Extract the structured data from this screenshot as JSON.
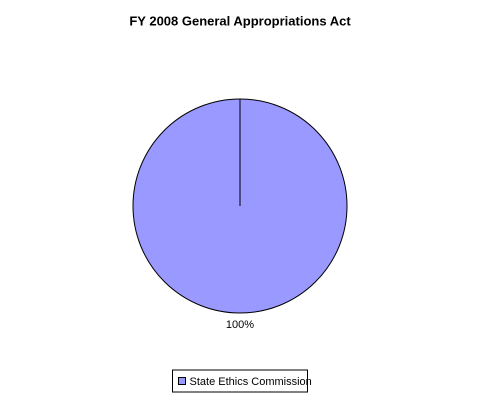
{
  "chart_data": {
    "type": "pie",
    "title": "FY 2008 General Appropriations Act",
    "categories": [
      "State Ethics Commission"
    ],
    "values": [
      100
    ],
    "value_labels": [
      "100%"
    ],
    "colors": [
      "#9999ff"
    ],
    "legend": "bottom"
  }
}
